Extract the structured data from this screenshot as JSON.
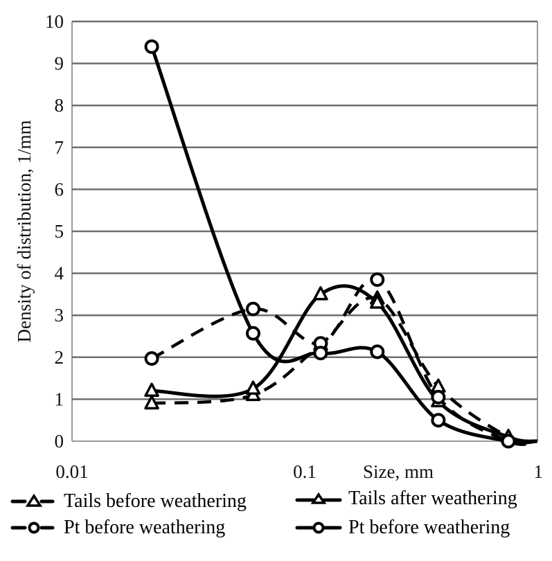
{
  "chart_data": {
    "type": "line",
    "title": "",
    "xlabel": "Size, mm",
    "ylabel": "Density of distribution, 1/mm",
    "xscale": "log",
    "xlim": [
      0.01,
      1
    ],
    "ylim": [
      0,
      10
    ],
    "x_ticks": [
      "0.01",
      "0.1",
      "1"
    ],
    "x_tick_values": [
      0.01,
      0.1,
      1
    ],
    "y_ticks": [
      "0",
      "1",
      "2",
      "3",
      "4",
      "5",
      "6",
      "7",
      "8",
      "9",
      "10"
    ],
    "y_tick_values": [
      0,
      1,
      2,
      3,
      4,
      5,
      6,
      7,
      8,
      9,
      10
    ],
    "grid": "horizontal",
    "smooth": true,
    "legend_position": "bottom",
    "series": [
      {
        "name": "Tails before weathering",
        "line": "dashed",
        "marker": "triangle",
        "x": [
          0.022,
          0.06,
          0.117,
          0.205,
          0.375,
          0.75,
          1.0
        ],
        "y": [
          0.9,
          1.1,
          2.3,
          3.4,
          1.3,
          0.1,
          0.0
        ],
        "marker_count": 6
      },
      {
        "name": "Tails after weathering",
        "line": "solid",
        "marker": "triangle",
        "x": [
          0.022,
          0.06,
          0.117,
          0.205,
          0.375,
          0.75,
          1.0
        ],
        "y": [
          1.2,
          1.25,
          3.5,
          3.3,
          0.95,
          0.1,
          0.0
        ],
        "marker_count": 6
      },
      {
        "name": "Pt before weathering",
        "line": "dashed",
        "marker": "circle",
        "x": [
          0.022,
          0.06,
          0.117,
          0.205,
          0.375,
          0.75,
          1.0
        ],
        "y": [
          1.97,
          3.15,
          2.33,
          3.85,
          1.05,
          0.0,
          0.0
        ],
        "marker_count": 6
      },
      {
        "name": "Pt before weathering",
        "line": "solid",
        "marker": "circle",
        "x": [
          0.022,
          0.06,
          0.117,
          0.205,
          0.375,
          0.75,
          1.0
        ],
        "y": [
          9.4,
          2.57,
          2.1,
          2.13,
          0.5,
          0.0,
          0.0
        ],
        "marker_count": 6
      }
    ]
  },
  "legend": {
    "items": [
      {
        "label": "Tails before weathering",
        "line": "dashed",
        "marker": "triangle"
      },
      {
        "label": "Tails after weathering",
        "line": "solid",
        "marker": "triangle"
      },
      {
        "label": "Pt before weathering",
        "line": "dashed",
        "marker": "circle"
      },
      {
        "label": "Pt before weathering",
        "line": "solid",
        "marker": "circle"
      }
    ]
  }
}
